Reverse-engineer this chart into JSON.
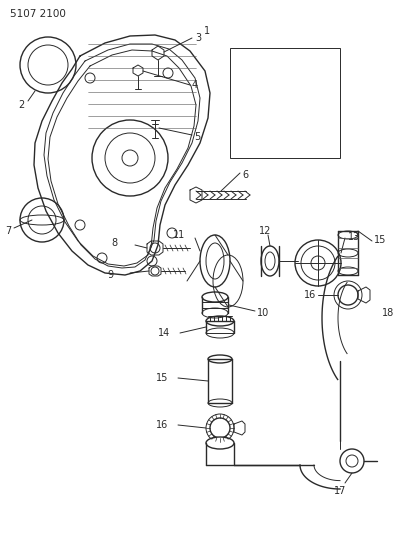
{
  "bg": "#ffffff",
  "lc": "#2a2a2a",
  "fig_w": 4.08,
  "fig_h": 5.33,
  "dpi": 100,
  "part_number": "5107 2100"
}
